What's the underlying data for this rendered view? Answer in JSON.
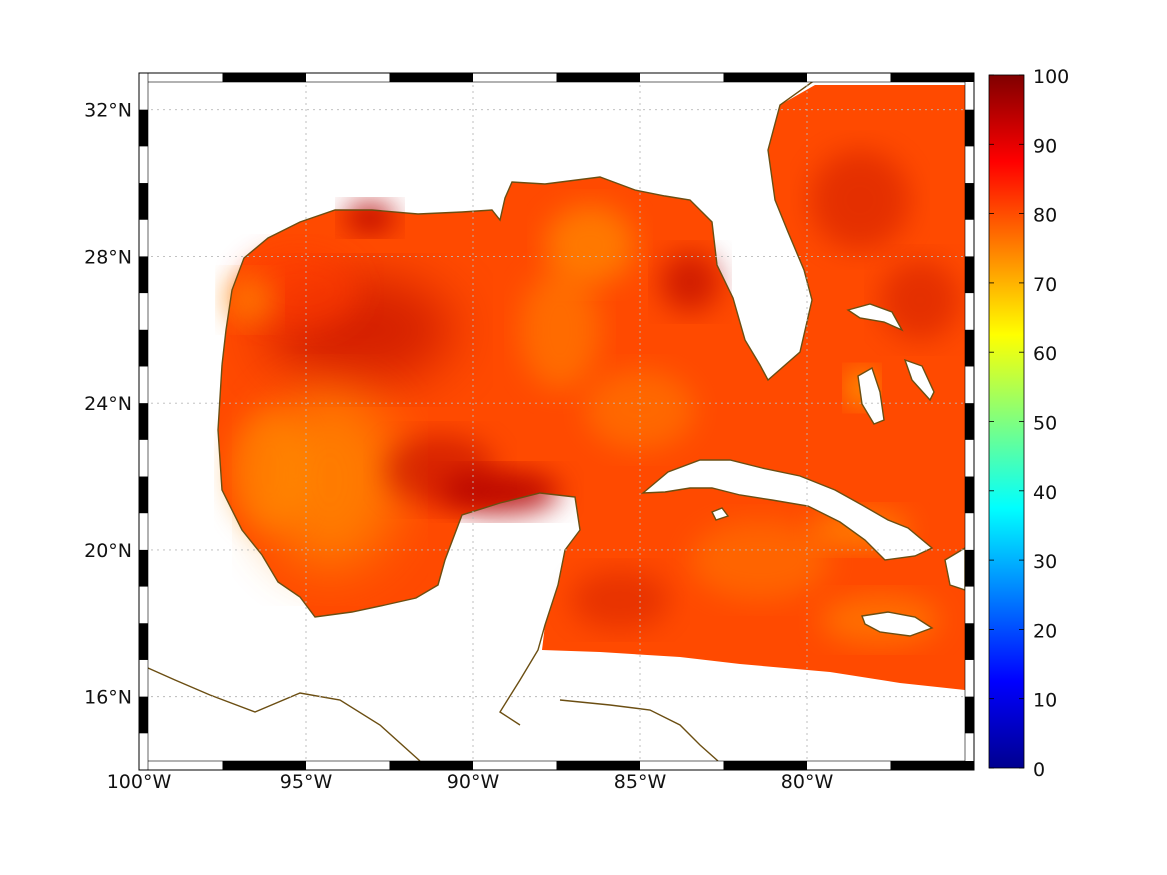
{
  "map": {
    "projection": "equirectangular",
    "extent": {
      "lon_min": -100,
      "lon_max": -75,
      "lat_min": 14,
      "lat_max": 33
    },
    "graticule": "dotted",
    "lon_ticks": [
      {
        "value": -100,
        "label": "100°W"
      },
      {
        "value": -95,
        "label": "95°W"
      },
      {
        "value": -90,
        "label": "90°W"
      },
      {
        "value": -85,
        "label": "85°W"
      },
      {
        "value": -80,
        "label": "80°W"
      }
    ],
    "lat_ticks": [
      {
        "value": 32,
        "label": "32°N"
      },
      {
        "value": 28,
        "label": "28°N"
      },
      {
        "value": 24,
        "label": "24°N"
      },
      {
        "value": 20,
        "label": "20°N"
      },
      {
        "value": 16,
        "label": "16°N"
      }
    ],
    "coastline_color": "#6b4e12",
    "frame_colors": [
      "#000000",
      "#ffffff"
    ],
    "field_colors": {
      "low": "#ff8c00",
      "mid": "#ff3a00",
      "high": "#b30000"
    }
  },
  "colorbar": {
    "colormap": "jet",
    "range": [
      0,
      100
    ],
    "ticks": [
      {
        "value": 100,
        "label": "100"
      },
      {
        "value": 90,
        "label": "90"
      },
      {
        "value": 80,
        "label": "80"
      },
      {
        "value": 70,
        "label": "70"
      },
      {
        "value": 60,
        "label": "60"
      },
      {
        "value": 50,
        "label": "50"
      },
      {
        "value": 40,
        "label": "40"
      },
      {
        "value": 30,
        "label": "30"
      },
      {
        "value": 20,
        "label": "20"
      },
      {
        "value": 10,
        "label": "10"
      },
      {
        "value": 0,
        "label": "0"
      }
    ]
  }
}
